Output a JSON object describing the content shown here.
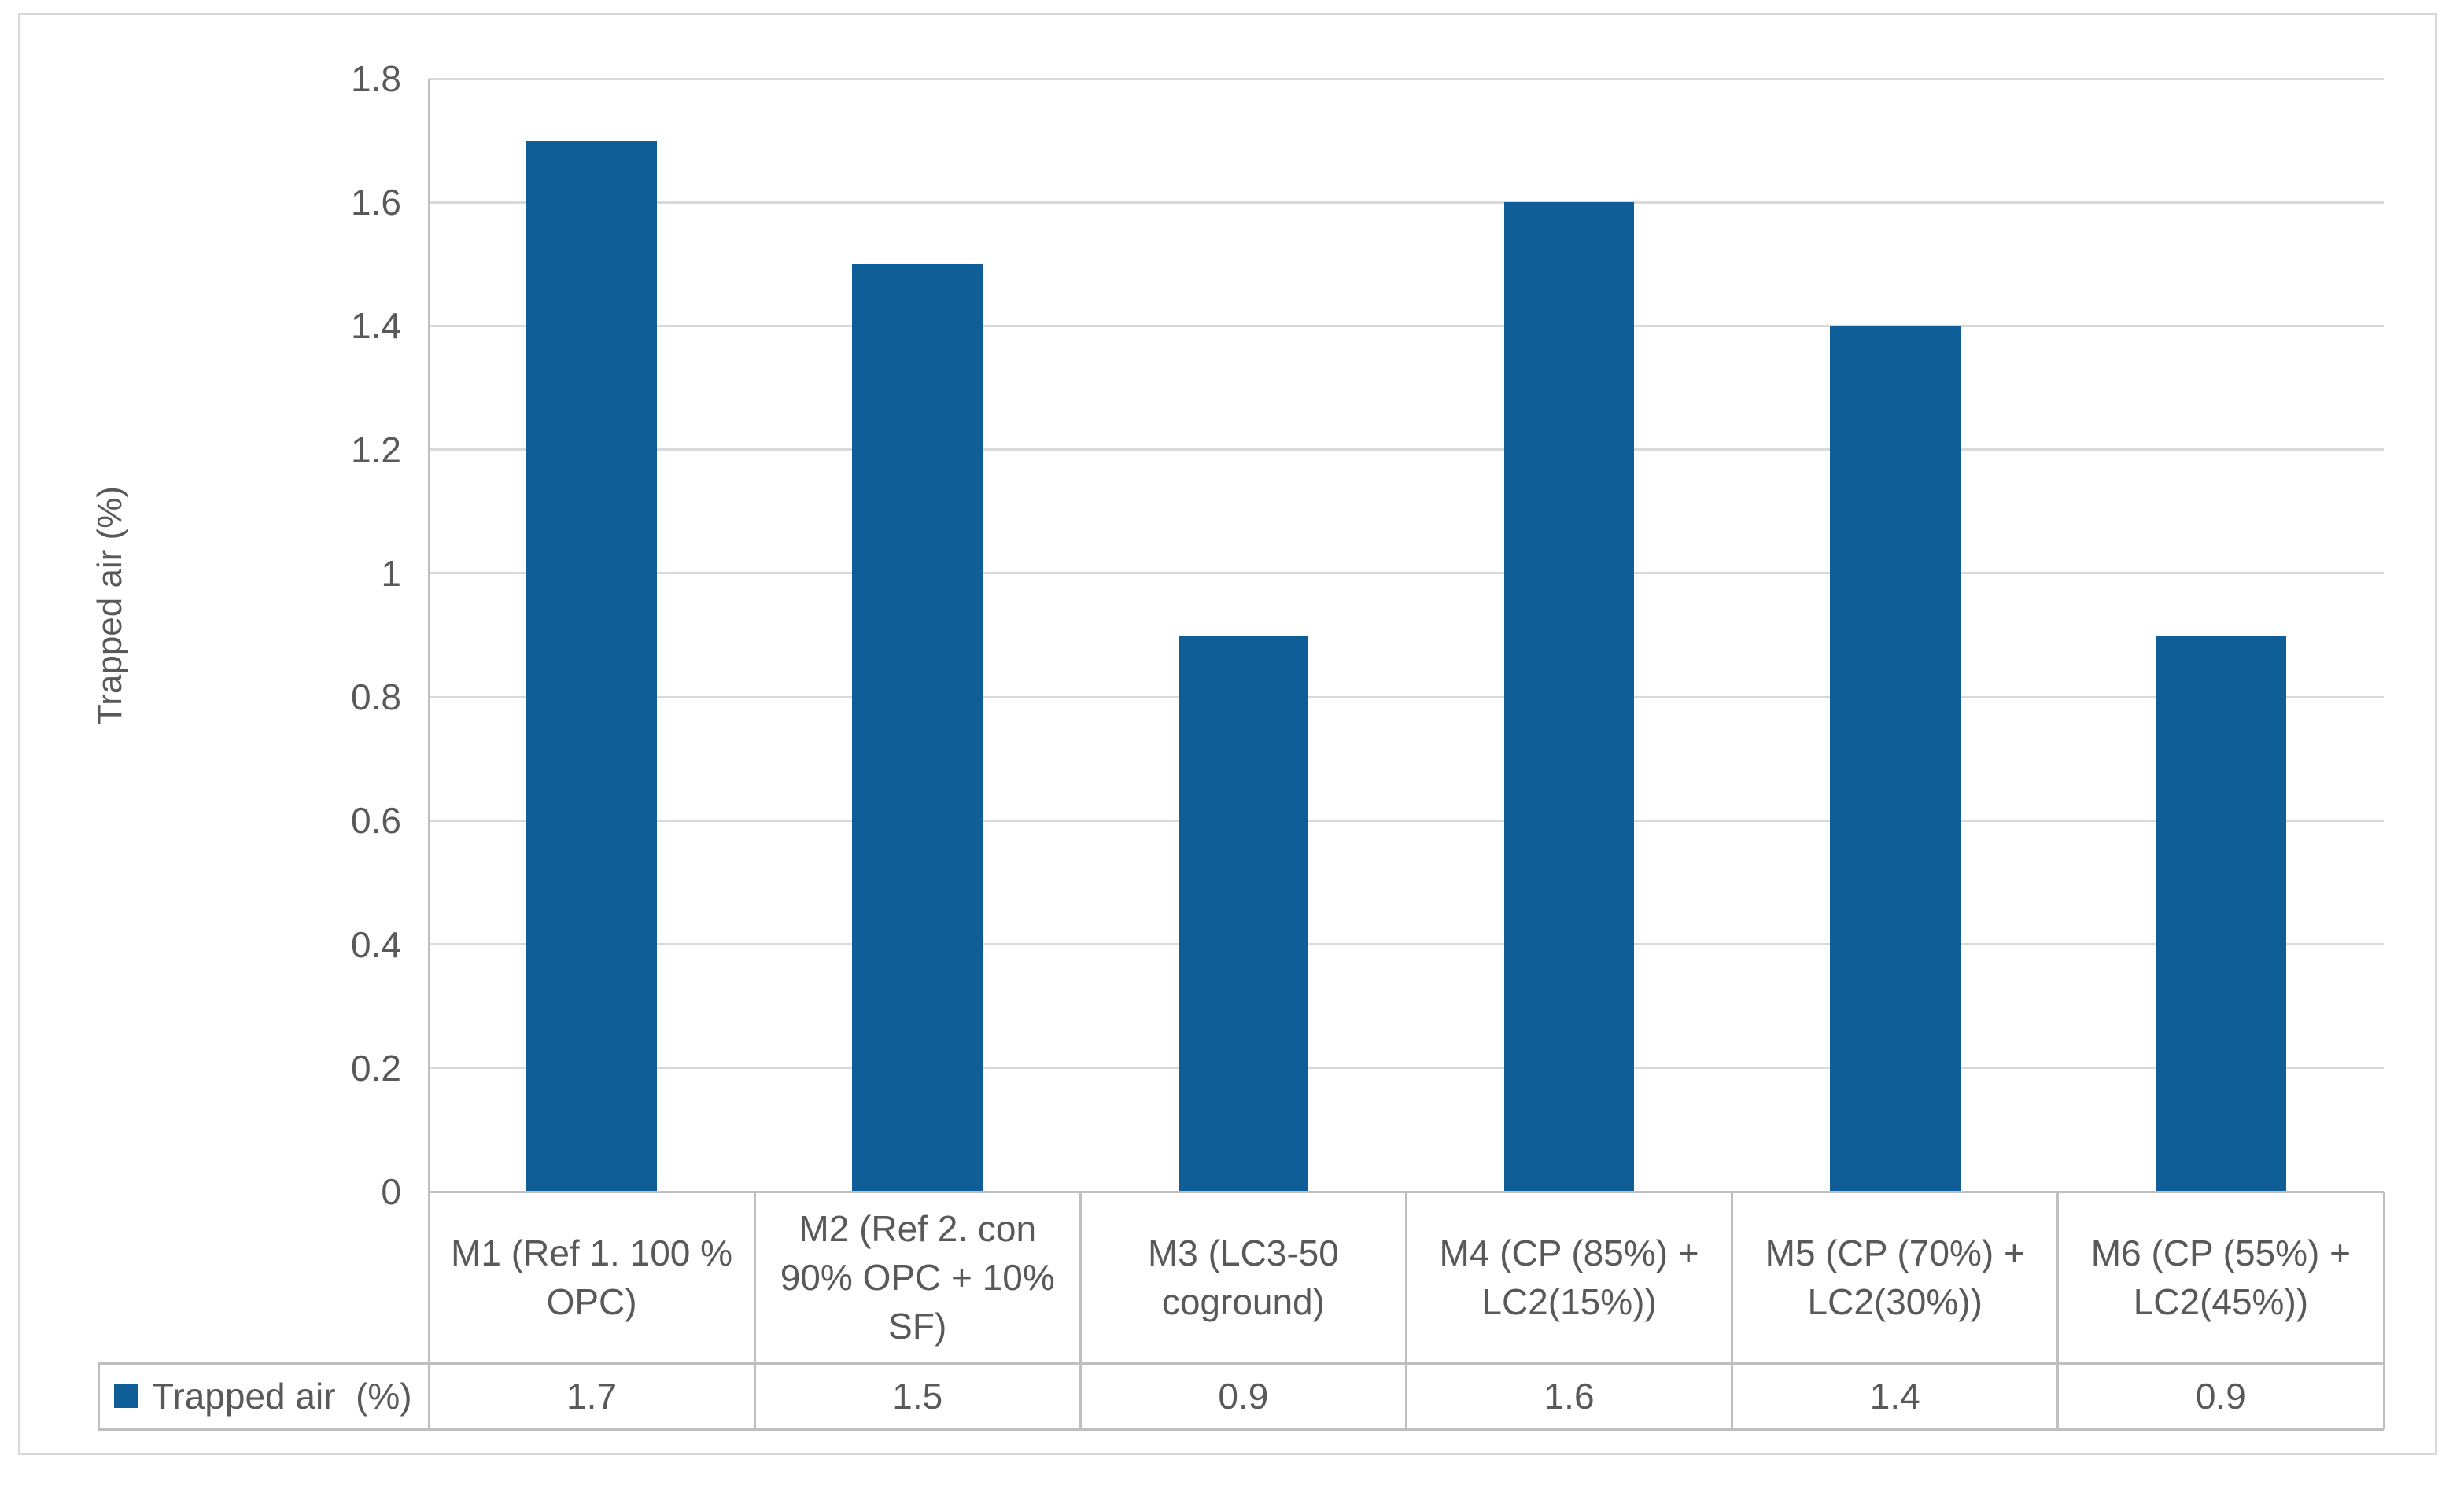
{
  "chart_data": {
    "type": "bar",
    "title": "",
    "xlabel": "",
    "ylabel": "Trapped air (%)",
    "ylim": [
      0,
      1.8
    ],
    "ytick_step": 0.2,
    "ytick_labels": [
      "0",
      "0.2",
      "0.4",
      "0.6",
      "0.8",
      "1",
      "1.2",
      "1.4",
      "1.6",
      "1.8"
    ],
    "grid": true,
    "legend_position": "data-table-left",
    "categories": [
      "M1 (Ref 1. 100 % OPC)",
      "M2 (Ref 2. con 90% OPC + 10% SF)",
      "M3 (LC3-50 coground)",
      "M4 (CP (85%) + LC2(15%))",
      "M5 (CP (70%) + LC2(30%))",
      "M6 (CP (55%) + LC2(45%))"
    ],
    "series": [
      {
        "name": "Trapped air  (%)",
        "values": [
          1.7,
          1.5,
          0.9,
          1.6,
          1.4,
          0.9
        ],
        "color": "#0F5E97"
      }
    ],
    "data_table": {
      "shown": true,
      "value_labels": [
        "1.7",
        "1.5",
        "0.9",
        "1.6",
        "1.4",
        "0.9"
      ]
    }
  },
  "colors": {
    "bar": "#0F5E97",
    "gridline": "#D9D9D9",
    "axis_line": "#BFBFBF",
    "table_border": "#BFBFBF",
    "text": "#595959",
    "frame_border": "#D9D9D9",
    "background": "#FFFFFF"
  }
}
